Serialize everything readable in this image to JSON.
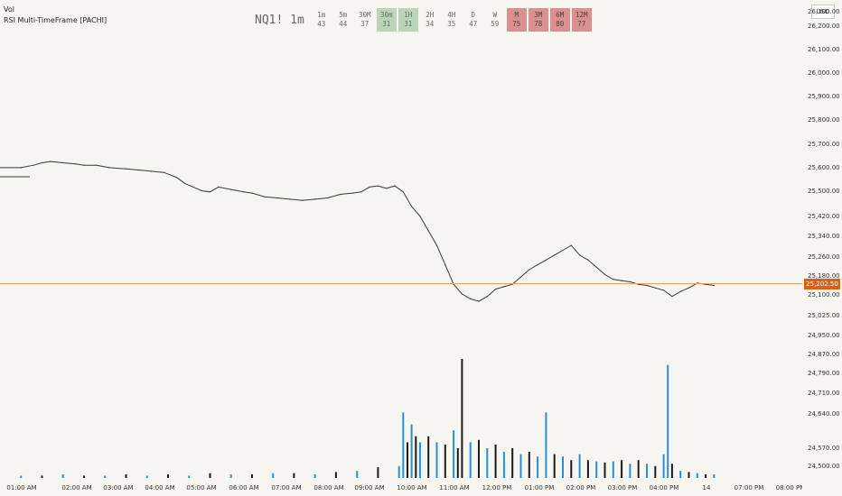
{
  "indicator_labels": {
    "line1": "Vol",
    "line2": "RSI Multi-TimeFrame [PACHI]"
  },
  "rsi_table": {
    "symbol": "NQ1! 1m",
    "cells": [
      {
        "tf": "1m",
        "val": "43",
        "state": "neutral"
      },
      {
        "tf": "5m",
        "val": "44",
        "state": "neutral"
      },
      {
        "tf": "30M",
        "val": "37",
        "state": "neutral"
      },
      {
        "tf": "30m",
        "val": "31",
        "state": "oversold"
      },
      {
        "tf": "1H",
        "val": "31",
        "state": "oversold"
      },
      {
        "tf": "2H",
        "val": "34",
        "state": "neutral"
      },
      {
        "tf": "4H",
        "val": "35",
        "state": "neutral"
      },
      {
        "tf": "D",
        "val": "47",
        "state": "neutral"
      },
      {
        "tf": "W",
        "val": "59",
        "state": "neutral"
      },
      {
        "tf": "M",
        "val": "75",
        "state": "overbought"
      },
      {
        "tf": "3M",
        "val": "78",
        "state": "overbought"
      },
      {
        "tf": "6M",
        "val": "80",
        "state": "overbought"
      },
      {
        "tf": "12M",
        "val": "77",
        "state": "overbought"
      }
    ]
  },
  "currency_button": "USD",
  "colors": {
    "background": "#f7f5ef",
    "price_line": "#2f3b3f",
    "current_price": "#e65c10",
    "vol_up": "#2a8fd0",
    "vol_down": "#1a1a1a",
    "rsi_green": "#b9d6b7",
    "rsi_red": "#d9908e"
  },
  "chart_data": {
    "type": "line",
    "title": "",
    "current_price_label": "25,202.50",
    "y_ticks": [
      "26,300.00",
      "26,200.00",
      "26,100.00",
      "26,000.00",
      "25,900.00",
      "25,800.00",
      "25,700.00",
      "25,600.00",
      "25,500.00",
      "25,420.00",
      "25,340.00",
      "25,260.00",
      "25,180.00",
      "25,100.00",
      "25,025.00",
      "24,950.00",
      "24,870.00",
      "24,790.00",
      "24,710.00",
      "24,640.00",
      "24,570.00",
      "24,500.00"
    ],
    "x_ticks": [
      "01:00 AM",
      "02:00 AM",
      "03:00 AM",
      "04:00 AM",
      "05:00 AM",
      "06:00 AM",
      "07:00 AM",
      "08:00 AM",
      "09:00 AM",
      "10:00 AM",
      "11:00 AM",
      "12:00 PM",
      "01:00 PM",
      "02:00 PM",
      "03:00 PM",
      "04:00 PM",
      "14",
      "07:00 PM",
      "08:00 PM"
    ],
    "price_series": {
      "x_hours": [
        0.5,
        0.8,
        1.0,
        1.2,
        1.5,
        1.8,
        2.0,
        2.3,
        2.6,
        3.0,
        3.3,
        3.6,
        3.9,
        4.2,
        4.4,
        4.6,
        4.8,
        5.0,
        5.2,
        5.5,
        5.8,
        6.0,
        6.3,
        6.6,
        6.9,
        7.2,
        7.5,
        7.8,
        8.1,
        8.4,
        8.6,
        8.8,
        9.0,
        9.2,
        9.4,
        9.6,
        9.8,
        10.0,
        10.2,
        10.4,
        10.6,
        10.8,
        11.0,
        11.2,
        11.4,
        11.6,
        11.8,
        12.0,
        12.2,
        12.4,
        12.6,
        12.8,
        13.0,
        13.2,
        13.4,
        13.6,
        13.8,
        14.0,
        14.2,
        14.4,
        14.6,
        14.8,
        15.0,
        15.2,
        15.4,
        15.6,
        15.8,
        16.0,
        16.2,
        16.4,
        16.6,
        16.8,
        17.0
      ],
      "price": [
        25680,
        25690,
        25700,
        25705,
        25700,
        25695,
        25690,
        25690,
        25680,
        25675,
        25670,
        25665,
        25660,
        25640,
        25615,
        25600,
        25585,
        25580,
        25600,
        25590,
        25580,
        25575,
        25560,
        25555,
        25550,
        25545,
        25550,
        25555,
        25570,
        25575,
        25580,
        25600,
        25605,
        25595,
        25605,
        25580,
        25520,
        25480,
        25420,
        25360,
        25280,
        25200,
        25160,
        25140,
        25130,
        25150,
        25180,
        25190,
        25200,
        25230,
        25260,
        25280,
        25300,
        25320,
        25340,
        25360,
        25320,
        25300,
        25270,
        25240,
        25220,
        25215,
        25210,
        25200,
        25195,
        25185,
        25175,
        25150,
        25170,
        25185,
        25205,
        25200,
        25195
      ]
    },
    "volume_series": {
      "x_hours": [
        0.5,
        1.0,
        1.5,
        2.0,
        2.5,
        3.0,
        3.5,
        4.0,
        4.5,
        5.0,
        5.5,
        6.0,
        6.5,
        7.0,
        7.5,
        8.0,
        8.5,
        9.0,
        9.5,
        9.6,
        9.7,
        9.8,
        9.9,
        10.0,
        10.2,
        10.4,
        10.6,
        10.8,
        10.9,
        11.0,
        11.2,
        11.4,
        11.6,
        11.8,
        12.0,
        12.2,
        12.4,
        12.6,
        12.8,
        13.0,
        13.2,
        13.4,
        13.6,
        13.8,
        14.0,
        14.2,
        14.4,
        14.6,
        14.8,
        15.0,
        15.2,
        15.4,
        15.6,
        15.8,
        15.9,
        16.0,
        16.2,
        16.4,
        16.6,
        16.8,
        17.0
      ],
      "volume_relative": [
        0.02,
        0.02,
        0.03,
        0.02,
        0.02,
        0.03,
        0.02,
        0.03,
        0.02,
        0.04,
        0.03,
        0.03,
        0.04,
        0.04,
        0.03,
        0.05,
        0.06,
        0.09,
        0.1,
        0.55,
        0.3,
        0.45,
        0.35,
        0.3,
        0.35,
        0.3,
        0.28,
        0.4,
        0.25,
        1.0,
        0.3,
        0.32,
        0.25,
        0.28,
        0.22,
        0.25,
        0.2,
        0.22,
        0.18,
        0.55,
        0.2,
        0.18,
        0.15,
        0.2,
        0.15,
        0.14,
        0.13,
        0.14,
        0.15,
        0.12,
        0.15,
        0.12,
        0.1,
        0.2,
        0.95,
        0.12,
        0.06,
        0.05,
        0.04,
        0.03,
        0.03
      ],
      "direction": [
        "u",
        "d",
        "u",
        "d",
        "u",
        "d",
        "u",
        "d",
        "u",
        "d",
        "u",
        "d",
        "u",
        "d",
        "u",
        "d",
        "u",
        "d",
        "u",
        "u",
        "d",
        "u",
        "d",
        "u",
        "d",
        "u",
        "d",
        "u",
        "d",
        "d",
        "u",
        "d",
        "u",
        "d",
        "u",
        "d",
        "u",
        "d",
        "u",
        "u",
        "d",
        "u",
        "d",
        "u",
        "d",
        "u",
        "d",
        "u",
        "d",
        "u",
        "d",
        "u",
        "d",
        "u",
        "u",
        "d",
        "u",
        "d",
        "u",
        "d",
        "u"
      ]
    },
    "ylim": [
      24440,
      26340
    ],
    "xlim_hours": [
      0.0,
      19.1
    ]
  }
}
